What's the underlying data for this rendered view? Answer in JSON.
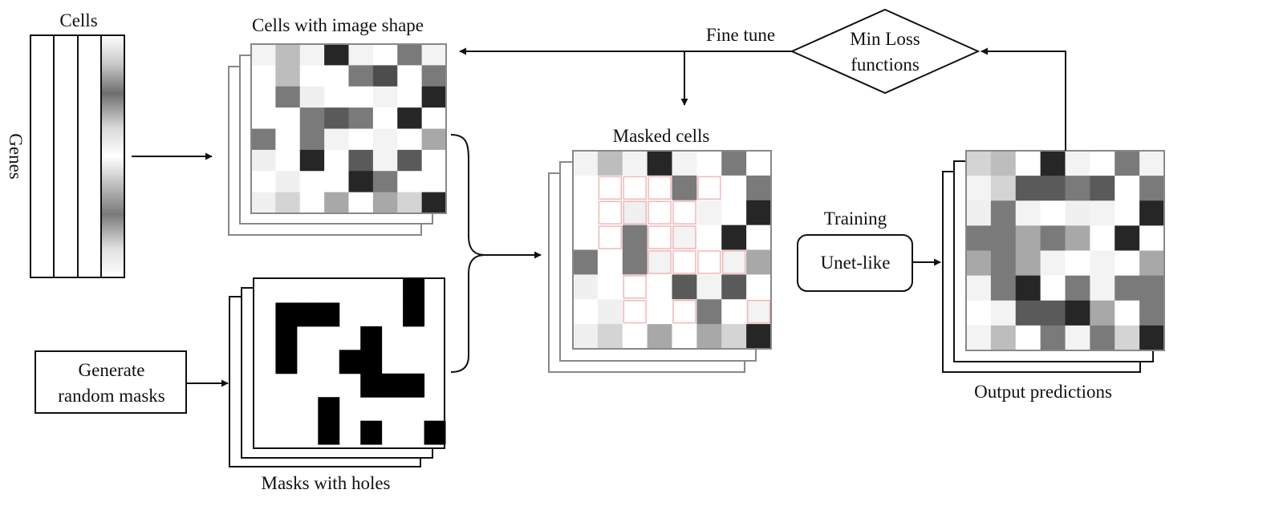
{
  "labels": {
    "cells": "Cells",
    "genes": "Genes",
    "cells_image_shape": "Cells with image shape",
    "masks_with_holes": "Masks with holes",
    "masked_cells": "Masked cells",
    "output_predictions": "Output predictions",
    "fine_tune": "Fine tune",
    "training": "Training"
  },
  "nodes": {
    "generate_masks": [
      "Generate",
      "random masks"
    ],
    "unet": "Unet-like",
    "min_loss": [
      "Min Loss",
      "functions"
    ]
  },
  "colors": {
    "stroke": "#111111",
    "frame_gray": "#888888",
    "hole_outline": "#f2b8b8"
  },
  "grids": {
    "cells": [
      [
        "#f3f3f3",
        "#bdbdbd",
        "#f3f3f3",
        "#262626",
        "#f3f3f3",
        "#ffffff",
        "#7a7a7a",
        "#f3f3f3"
      ],
      [
        "#ffffff",
        "#bdbdbd",
        "#ffffff",
        "#ffffff",
        "#7a7a7a",
        "#4d4d4d",
        "#ffffff",
        "#7a7a7a"
      ],
      [
        "#ffffff",
        "#7a7a7a",
        "#f0f0f0",
        "#ffffff",
        "#ffffff",
        "#f3f3f3",
        "#ffffff",
        "#262626"
      ],
      [
        "#ffffff",
        "#ffffff",
        "#7a7a7a",
        "#5a5a5a",
        "#7a7a7a",
        "#ffffff",
        "#262626",
        "#ffffff"
      ],
      [
        "#7a7a7a",
        "#ffffff",
        "#7a7a7a",
        "#f3f3f3",
        "#ffffff",
        "#f3f3f3",
        "#ffffff",
        "#a8a8a8"
      ],
      [
        "#f0f0f0",
        "#ffffff",
        "#262626",
        "#ffffff",
        "#5a5a5a",
        "#f3f3f3",
        "#5a5a5a",
        "#ffffff"
      ],
      [
        "#ffffff",
        "#f0f0f0",
        "#ffffff",
        "#ffffff",
        "#262626",
        "#7a7a7a",
        "#ffffff",
        "#ffffff"
      ],
      [
        "#f0f0f0",
        "#d4d4d4",
        "#ffffff",
        "#a8a8a8",
        "#ffffff",
        "#a8a8a8",
        "#d4d4d4",
        "#262626"
      ]
    ],
    "mask_blocks": [
      [
        7,
        0
      ],
      [
        1,
        1
      ],
      [
        2,
        1
      ],
      [
        3,
        1
      ],
      [
        7,
        1
      ],
      [
        1,
        2
      ],
      [
        5,
        2
      ],
      [
        1,
        3
      ],
      [
        4,
        3
      ],
      [
        5,
        3
      ],
      [
        5,
        4
      ],
      [
        6,
        4
      ],
      [
        7,
        4
      ],
      [
        3,
        5
      ],
      [
        3,
        6
      ],
      [
        5,
        6
      ],
      [
        8,
        6
      ]
    ],
    "masked": [
      [
        "#f3f3f3",
        "#bdbdbd",
        "#f3f3f3",
        "#262626",
        "#f3f3f3",
        "#ffffff",
        "#7a7a7a",
        "#ffffff"
      ],
      [
        "#ffffff",
        "#ffffff",
        "#ffffff",
        "#ffffff",
        "#7a7a7a",
        "#ffffff",
        "#ffffff",
        "#7a7a7a"
      ],
      [
        "#ffffff",
        "#ffffff",
        "#f0f0f0",
        "#ffffff",
        "#ffffff",
        "#f3f3f3",
        "#ffffff",
        "#262626"
      ],
      [
        "#ffffff",
        "#ffffff",
        "#7a7a7a",
        "#ffffff",
        "#f3f3f3",
        "#ffffff",
        "#262626",
        "#ffffff"
      ],
      [
        "#7a7a7a",
        "#ffffff",
        "#7a7a7a",
        "#f3f3f3",
        "#ffffff",
        "#ffffff",
        "#f3f3f3",
        "#a8a8a8"
      ],
      [
        "#f0f0f0",
        "#ffffff",
        "#ffffff",
        "#ffffff",
        "#5a5a5a",
        "#f3f3f3",
        "#5a5a5a",
        "#ffffff"
      ],
      [
        "#ffffff",
        "#f0f0f0",
        "#ffffff",
        "#ffffff",
        "#ffffff",
        "#7a7a7a",
        "#ffffff",
        "#f3f3f3"
      ],
      [
        "#f0f0f0",
        "#d4d4d4",
        "#ffffff",
        "#a8a8a8",
        "#ffffff",
        "#a8a8a8",
        "#d4d4d4",
        "#262626"
      ]
    ],
    "masked_holes": [
      [
        1,
        1
      ],
      [
        2,
        1
      ],
      [
        3,
        1
      ],
      [
        5,
        1
      ],
      [
        1,
        2
      ],
      [
        2,
        2
      ],
      [
        3,
        2
      ],
      [
        4,
        2
      ],
      [
        1,
        3
      ],
      [
        3,
        3
      ],
      [
        4,
        3
      ],
      [
        3,
        4
      ],
      [
        4,
        4
      ],
      [
        5,
        4
      ],
      [
        6,
        4
      ],
      [
        2,
        5
      ],
      [
        2,
        6
      ],
      [
        4,
        6
      ],
      [
        7,
        6
      ]
    ],
    "output": [
      [
        "#d4d4d4",
        "#bdbdbd",
        "#ffffff",
        "#262626",
        "#f3f3f3",
        "#ffffff",
        "#7a7a7a",
        "#f3f3f3"
      ],
      [
        "#f3f3f3",
        "#d4d4d4",
        "#5a5a5a",
        "#5a5a5a",
        "#7a7a7a",
        "#5a5a5a",
        "#ffffff",
        "#7a7a7a"
      ],
      [
        "#f0f0f0",
        "#7a7a7a",
        "#f3f3f3",
        "#ffffff",
        "#f0f0f0",
        "#f3f3f3",
        "#ffffff",
        "#262626"
      ],
      [
        "#7a7a7a",
        "#7a7a7a",
        "#a8a8a8",
        "#7a7a7a",
        "#a8a8a8",
        "#ffffff",
        "#262626",
        "#ffffff"
      ],
      [
        "#a8a8a8",
        "#7a7a7a",
        "#a8a8a8",
        "#f3f3f3",
        "#ffffff",
        "#f3f3f3",
        "#ffffff",
        "#a8a8a8"
      ],
      [
        "#f3f3f3",
        "#7a7a7a",
        "#262626",
        "#ffffff",
        "#7a7a7a",
        "#f3f3f3",
        "#7a7a7a",
        "#7a7a7a"
      ],
      [
        "#ffffff",
        "#f3f3f3",
        "#5a5a5a",
        "#5a5a5a",
        "#262626",
        "#a8a8a8",
        "#ffffff",
        "#7a7a7a"
      ],
      [
        "#f3f3f3",
        "#bdbdbd",
        "#ffffff",
        "#7a7a7a",
        "#f3f3f3",
        "#7a7a7a",
        "#d4d4d4",
        "#262626"
      ]
    ]
  }
}
